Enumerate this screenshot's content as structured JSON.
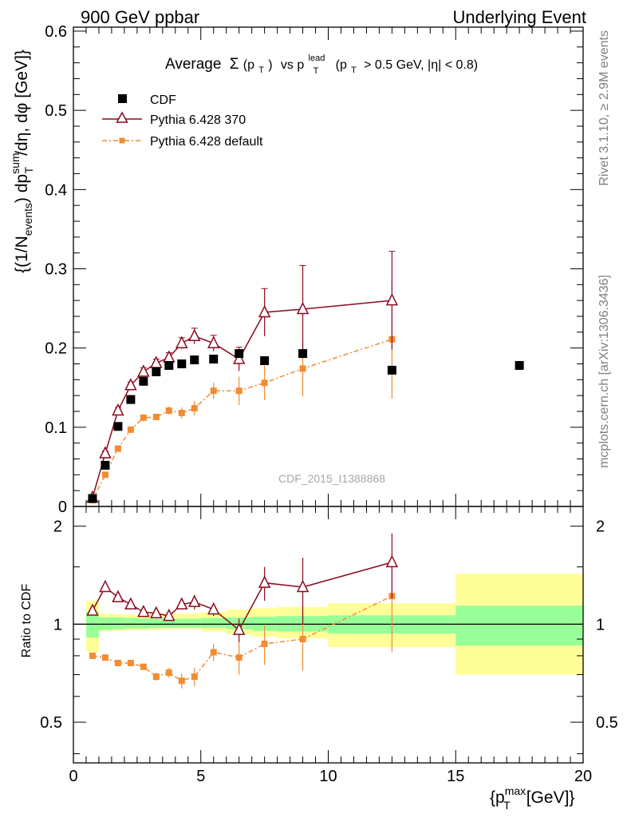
{
  "header": {
    "left": "900 GeV ppbar",
    "right": "Underlying Event"
  },
  "plot_title": {
    "average": "Average",
    "sigma": "Σ",
    "pt_open": "(p",
    "pt_sub": "T",
    "pt_close": ")",
    "vs": "vs p",
    "lead_sup": "lead",
    "lead_sub": "T",
    "cut": "(p",
    "cut_sub": "T",
    "cut_rest": "> 0.5 GeV, |η| < 0.8)"
  },
  "watermark": "CDF_2015_I1388868",
  "side_labels": {
    "rivet": "Rivet 3.1.10, ≥ 2.9M events",
    "mcplots": "mcplots.cern.ch [arXiv:1306.3436]"
  },
  "axes": {
    "main_ylabel": "{(1/N_events) dp_T^sum/dη, dφ [GeV]}",
    "ratio_ylabel": "Ratio to CDF",
    "xlabel": "{p_T^max [GeV]}",
    "main_yticks": [
      "0",
      "0.1",
      "0.2",
      "0.3",
      "0.4",
      "0.5",
      "0.6"
    ],
    "ratio_yticks": [
      "0.5",
      "1",
      "2"
    ],
    "xticks": [
      "0",
      "5",
      "10",
      "15",
      "20"
    ]
  },
  "legend": {
    "cdf": "CDF",
    "p370": "Pythia 6.428 370",
    "pdef": "Pythia 6.428 default"
  },
  "colors": {
    "cdf": "#000000",
    "p370": "#8b0a1e",
    "pdef": "#f28c32",
    "band_inner": "#99ff99",
    "band_outer": "#ffff99"
  },
  "chart_data": [
    {
      "type": "scatter",
      "title": "Average Σ(p_T) vs p_T^lead (p_T > 0.5 GeV, |η| < 0.8)",
      "xlabel": "{p_T^max [GeV]}",
      "ylabel": "{(1/N_events) dp_T^sum/dη, dφ [GeV]}",
      "xlim": [
        0,
        20
      ],
      "ylim": [
        0,
        0.605
      ],
      "grid": false,
      "legend_position": "top-left",
      "series": [
        {
          "name": "CDF",
          "marker": "square",
          "x": [
            0.75,
            1.25,
            1.75,
            2.25,
            2.75,
            3.25,
            3.75,
            4.25,
            4.75,
            5.5,
            6.5,
            7.5,
            9.0,
            12.5,
            17.5
          ],
          "y": [
            0.01,
            0.052,
            0.101,
            0.135,
            0.158,
            0.17,
            0.178,
            0.18,
            0.185,
            0.186,
            0.193,
            0.184,
            0.193,
            0.172,
            0.178
          ]
        },
        {
          "name": "Pythia 6.428 370",
          "marker": "open-triangle",
          "x": [
            0.75,
            1.25,
            1.75,
            2.25,
            2.75,
            3.25,
            3.75,
            4.25,
            4.75,
            5.5,
            6.5,
            7.5,
            9.0,
            12.5
          ],
          "y": [
            0.011,
            0.067,
            0.121,
            0.153,
            0.17,
            0.181,
            0.188,
            0.206,
            0.215,
            0.206,
            0.186,
            0.245,
            0.249,
            0.26
          ],
          "err": [
            0.002,
            0.003,
            0.004,
            0.004,
            0.005,
            0.005,
            0.006,
            0.007,
            0.01,
            0.01,
            0.015,
            0.03,
            0.055,
            0.062
          ]
        },
        {
          "name": "Pythia 6.428 default",
          "marker": "filled-square-small",
          "x": [
            0.75,
            1.25,
            1.75,
            2.25,
            2.75,
            3.25,
            3.75,
            4.25,
            4.75,
            5.5,
            6.5,
            7.5,
            9.0,
            12.5
          ],
          "y": [
            0.008,
            0.04,
            0.073,
            0.097,
            0.112,
            0.113,
            0.121,
            0.118,
            0.124,
            0.146,
            0.146,
            0.156,
            0.174,
            0.211
          ],
          "err": [
            0.002,
            0.002,
            0.003,
            0.003,
            0.004,
            0.004,
            0.005,
            0.007,
            0.009,
            0.01,
            0.018,
            0.022,
            0.035,
            0.075
          ]
        }
      ]
    },
    {
      "type": "scatter",
      "title": "",
      "xlabel": "{p_T^max [GeV]}",
      "ylabel": "Ratio to CDF",
      "xlim": [
        0,
        20
      ],
      "ylim": [
        0.375,
        2.3
      ],
      "yscale": "log",
      "reference_line": 1,
      "bands": {
        "edges": [
          0.5,
          1.0,
          1.5,
          2.0,
          2.5,
          3.0,
          3.5,
          4.0,
          4.5,
          5.0,
          6.0,
          7.0,
          8.0,
          10.0,
          15.0,
          20.0
        ],
        "inner_low": [
          0.91,
          0.96,
          0.965,
          0.97,
          0.97,
          0.975,
          0.975,
          0.975,
          0.975,
          0.975,
          0.965,
          0.955,
          0.95,
          0.935,
          0.86
        ],
        "inner_high": [
          1.09,
          1.05,
          1.05,
          1.045,
          1.04,
          1.04,
          1.04,
          1.04,
          1.04,
          1.045,
          1.05,
          1.055,
          1.06,
          1.065,
          1.14
        ],
        "outer_low": [
          0.82,
          0.95,
          0.955,
          0.96,
          0.96,
          0.96,
          0.965,
          0.965,
          0.965,
          0.95,
          0.93,
          0.915,
          0.905,
          0.85,
          0.7
        ],
        "outer_high": [
          1.18,
          1.08,
          1.075,
          1.07,
          1.07,
          1.08,
          1.08,
          1.08,
          1.08,
          1.09,
          1.11,
          1.12,
          1.13,
          1.16,
          1.43
        ]
      },
      "series": [
        {
          "name": "Pythia 6.428 370",
          "x": [
            0.75,
            1.25,
            1.75,
            2.25,
            2.75,
            3.25,
            3.75,
            4.25,
            4.75,
            5.5,
            6.5,
            7.5,
            9.0,
            12.5
          ],
          "y": [
            1.1,
            1.3,
            1.21,
            1.15,
            1.09,
            1.08,
            1.06,
            1.15,
            1.17,
            1.11,
            0.96,
            1.34,
            1.3,
            1.55
          ],
          "err": [
            0.03,
            0.03,
            0.03,
            0.03,
            0.03,
            0.03,
            0.03,
            0.04,
            0.06,
            0.05,
            0.08,
            0.16,
            0.3,
            0.35
          ]
        },
        {
          "name": "Pythia 6.428 default",
          "x": [
            0.75,
            1.25,
            1.75,
            2.25,
            2.75,
            3.25,
            3.75,
            4.25,
            4.75,
            5.5,
            6.5,
            7.5,
            9.0,
            12.5
          ],
          "y": [
            0.8,
            0.79,
            0.76,
            0.76,
            0.74,
            0.69,
            0.71,
            0.67,
            0.69,
            0.82,
            0.79,
            0.87,
            0.9,
            1.22
          ],
          "err": [
            0.01,
            0.01,
            0.01,
            0.015,
            0.015,
            0.02,
            0.025,
            0.035,
            0.045,
            0.05,
            0.09,
            0.12,
            0.18,
            0.4
          ]
        }
      ]
    }
  ]
}
